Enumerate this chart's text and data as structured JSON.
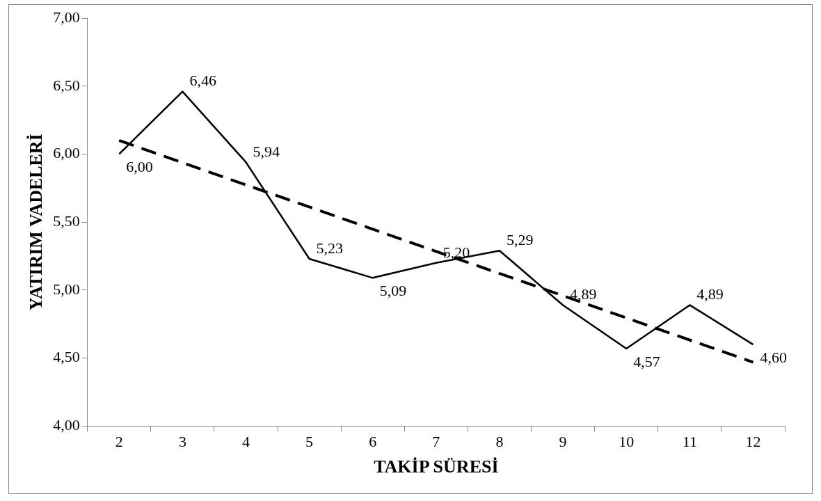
{
  "chart_data": {
    "type": "line",
    "xlabel": "TAKİP SÜRESİ",
    "ylabel": "YATIRIM VADELERİ",
    "categories": [
      "2",
      "3",
      "4",
      "5",
      "6",
      "7",
      "8",
      "9",
      "10",
      "11",
      "12"
    ],
    "ylim": [
      4,
      7
    ],
    "yticks": [
      {
        "value": 4,
        "label": "4,00"
      },
      {
        "value": 4.5,
        "label": "4,50"
      },
      {
        "value": 5,
        "label": "5,00"
      },
      {
        "value": 5.5,
        "label": "5,50"
      },
      {
        "value": 6,
        "label": "6,00"
      },
      {
        "value": 6.5,
        "label": "6,50"
      },
      {
        "value": 7,
        "label": "7,00"
      }
    ],
    "grid": false,
    "legend": false,
    "marker": "none",
    "series": [
      {
        "type": "line",
        "color": "#000000",
        "line_style": "solid",
        "values": [
          6.0,
          6.46,
          5.94,
          5.23,
          5.09,
          5.2,
          5.29,
          4.89,
          4.57,
          4.89,
          4.6
        ],
        "value_labels": [
          "6,00",
          "6,46",
          "5,94",
          "5,23",
          "5,09",
          "5,20",
          "5,29",
          "4,89",
          "4,57",
          "4,89",
          "4,60"
        ]
      },
      {
        "type": "line",
        "color": "#000000",
        "line_style": "dashed",
        "x": [
          "2",
          "12"
        ],
        "values": [
          6.1,
          4.47
        ]
      }
    ]
  }
}
